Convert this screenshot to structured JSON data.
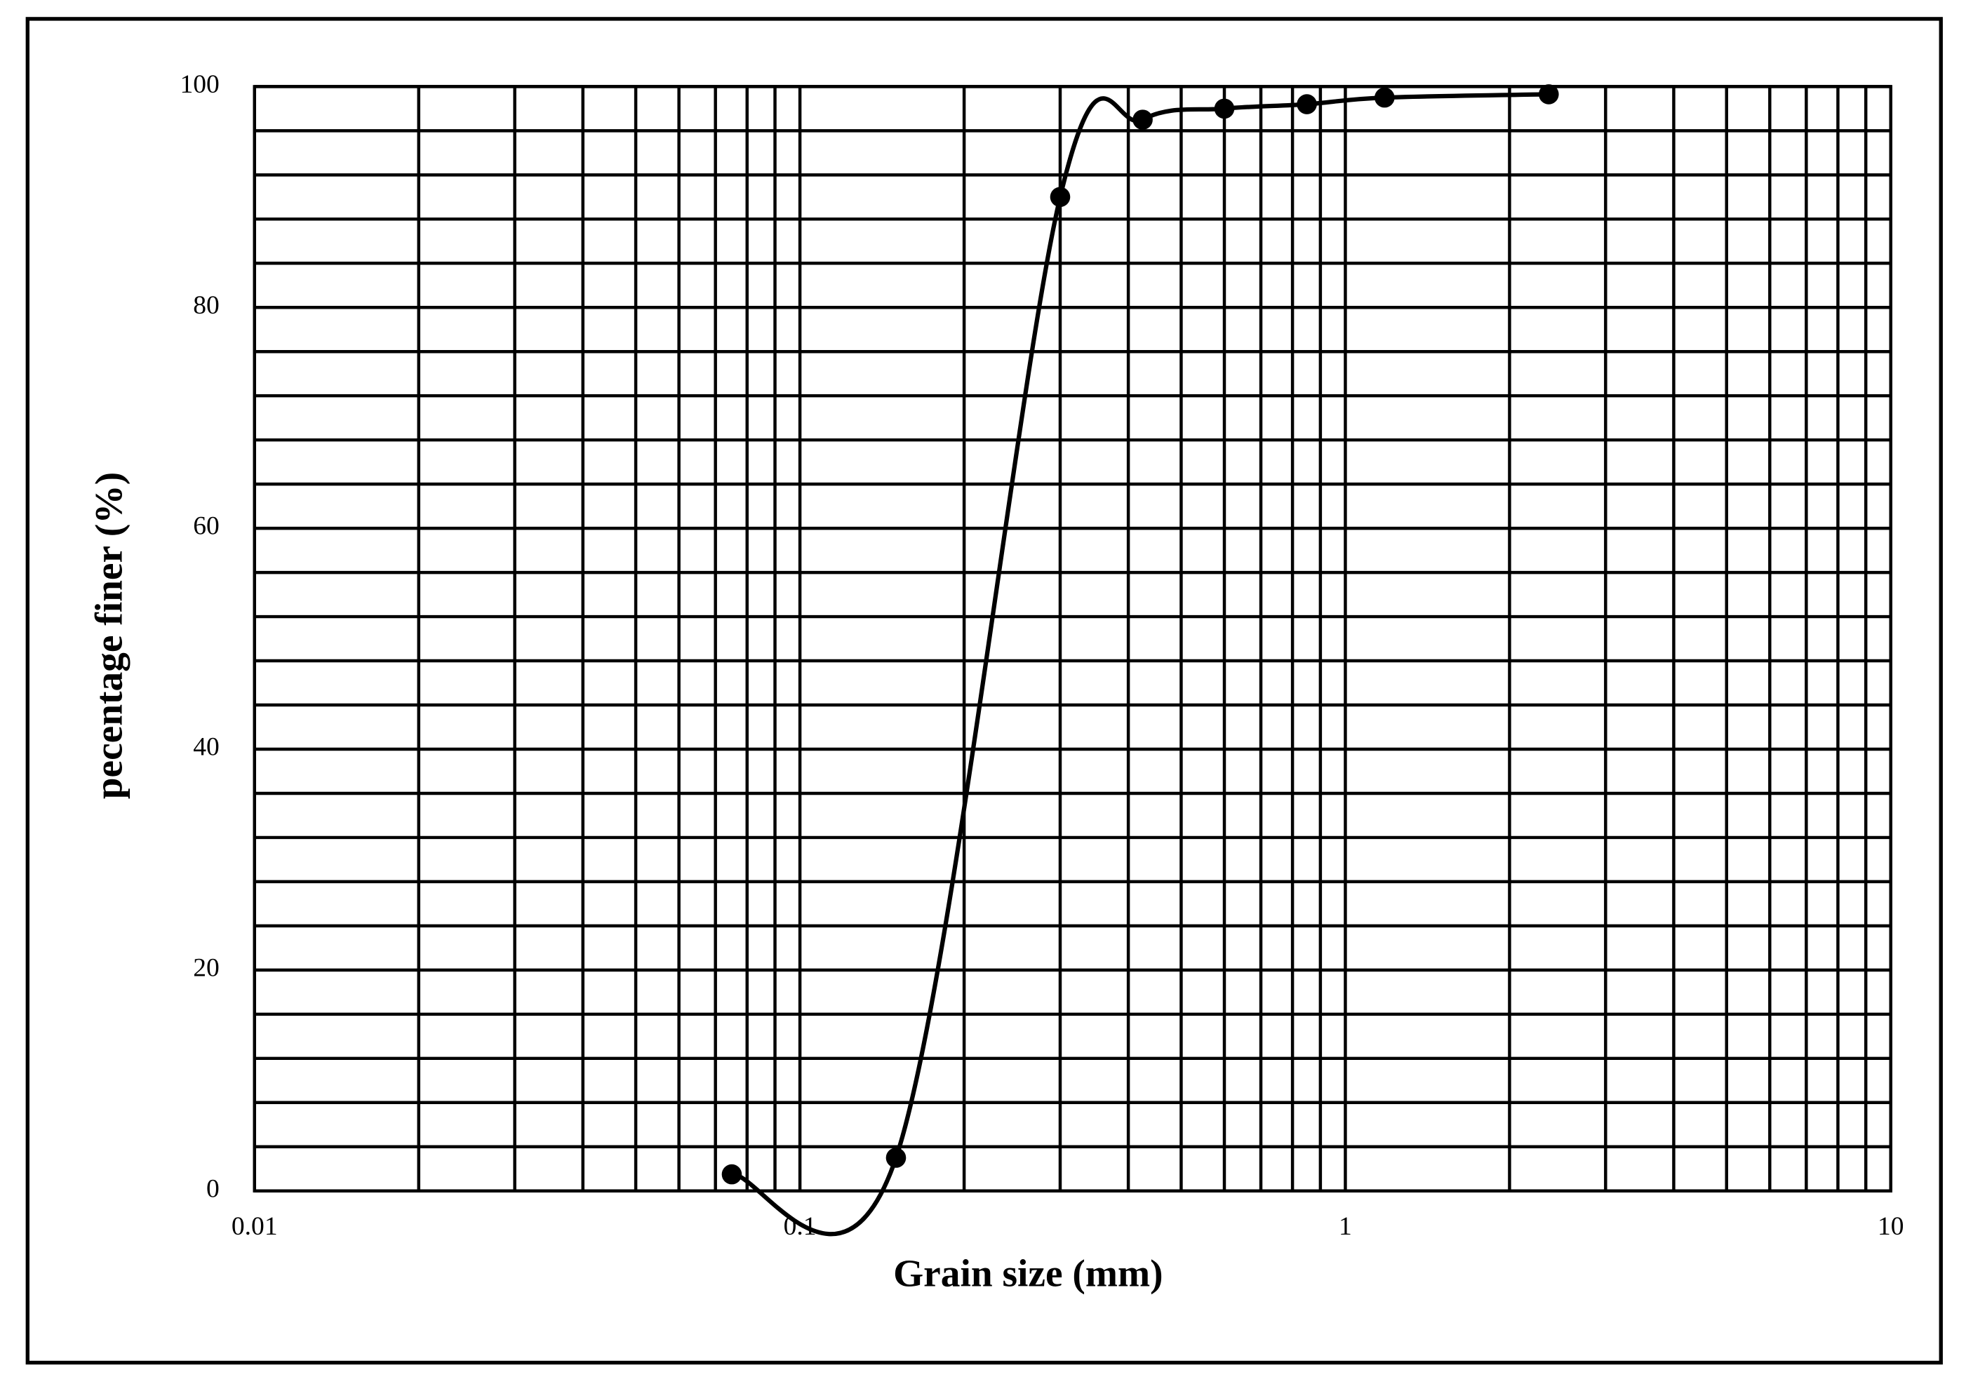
{
  "chart_data": {
    "type": "line",
    "x_scale": "log",
    "grid": true,
    "minor_grid": true,
    "x_label": "Grain size (mm)",
    "y_label": "pecentage finer (%)",
    "x": [
      0.075,
      0.15,
      0.3,
      0.425,
      0.6,
      0.85,
      1.18,
      2.36
    ],
    "series": [
      {
        "color": "#000000",
        "values": [
          1.5,
          3,
          90,
          97,
          98,
          98.4,
          99,
          99.3
        ]
      }
    ],
    "xlim": [
      0.01,
      10
    ],
    "xticks": [
      0.01,
      0.1,
      1,
      10
    ],
    "ylim": [
      0,
      100
    ],
    "yticks": [
      0,
      20,
      40,
      60,
      80,
      100
    ]
  }
}
